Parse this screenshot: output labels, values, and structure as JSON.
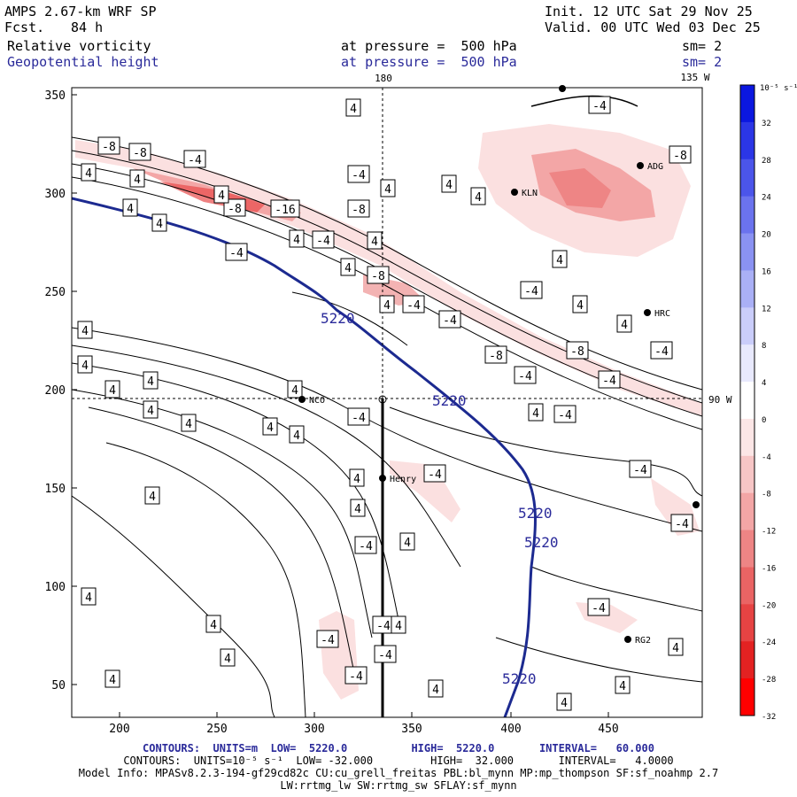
{
  "header": {
    "model": "AMPS 2.67-km WRF SP",
    "init": "Init. 12 UTC Sat 29 Nov 25",
    "fcst_label": "Fcst.",
    "fcst_value": "84 h",
    "valid": "Valid. 00 UTC Wed 03 Dec 25",
    "field1": "Relative vorticity",
    "field1_level": "at pressure =  500 hPa",
    "field1_sm": "sm= 2",
    "field2": "Geopotential height",
    "field2_level": "at pressure =  500 hPa",
    "field2_sm": "sm= 2"
  },
  "map": {
    "lon_label_180": "180",
    "lon_label_135w": "135 W",
    "lon_label_90w": "90 W",
    "x_ticks": [
      "200",
      "250",
      "300",
      "350",
      "400",
      "450"
    ],
    "y_ticks": [
      "350",
      "300",
      "250",
      "200",
      "150",
      "100",
      "50"
    ],
    "height_contour_label": "5220",
    "vort_labels": [
      "4",
      "-4",
      "-8",
      "-16"
    ],
    "stations": [
      {
        "name": "NCO"
      },
      {
        "name": "Henry"
      },
      {
        "name": "RG2"
      },
      {
        "name": "HRC"
      },
      {
        "name": "ADG"
      },
      {
        "name": "KLN"
      }
    ]
  },
  "colorbar": {
    "unit": "10⁻⁵ s⁻¹",
    "labels": [
      "32",
      "28",
      "24",
      "20",
      "16",
      "12",
      "8",
      "4",
      "0",
      "-4",
      "-8",
      "-12",
      "-16",
      "-20",
      "-24",
      "-28",
      "-32"
    ],
    "colors": [
      "#0b17e0",
      "#2b36e6",
      "#4b55ea",
      "#6b73ee",
      "#8a92f2",
      "#aab0f6",
      "#cacdfa",
      "#e8e9fd",
      "#ffffff",
      "#fce6e6",
      "#f7c6c6",
      "#f3a6a6",
      "#ee8585",
      "#ea6464",
      "#e64343",
      "#e32222",
      "#ff0000"
    ]
  },
  "footer": {
    "line1": "CONTOURS:  UNITS=m  LOW=  5220.0          HIGH=  5220.0       INTERVAL=   60.000",
    "line2": "CONTOURS:  UNITS=10⁻⁵ s⁻¹  LOW= -32.000         HIGH=  32.000       INTERVAL=   4.0000",
    "line3": "Model Info: MPASv8.2.3-194-gf29cd82c CU:cu_grell_freitas PBL:bl_mynn MP:mp_thompson SF:sf_noahmp 2.7",
    "line4": "LW:rrtmg_lw SW:rrtmg_sw SFLAY:sf_mynn"
  }
}
